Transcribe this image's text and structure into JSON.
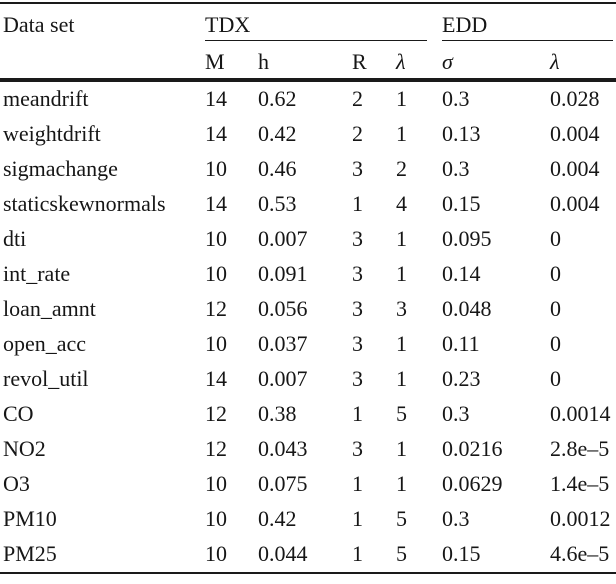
{
  "table": {
    "dataset_header": "Data set",
    "groups": [
      {
        "label": "TDX"
      },
      {
        "label": "EDD"
      }
    ],
    "subheaders": [
      "M",
      "h",
      "R",
      "λ",
      "σ",
      "λ"
    ],
    "rows": [
      {
        "name": "meandrift",
        "values": [
          "14",
          "0.62",
          "2",
          "1",
          "0.3",
          "0.028"
        ]
      },
      {
        "name": "weightdrift",
        "values": [
          "14",
          "0.42",
          "2",
          "1",
          "0.13",
          "0.004"
        ]
      },
      {
        "name": "sigmachange",
        "values": [
          "10",
          "0.46",
          "3",
          "2",
          "0.3",
          "0.004"
        ]
      },
      {
        "name": "staticskewnormals",
        "values": [
          "14",
          "0.53",
          "1",
          "4",
          "0.15",
          "0.004"
        ]
      },
      {
        "name": "dti",
        "values": [
          "10",
          "0.007",
          "3",
          "1",
          "0.095",
          "0"
        ]
      },
      {
        "name": "int_rate",
        "values": [
          "10",
          "0.091",
          "3",
          "1",
          "0.14",
          "0"
        ]
      },
      {
        "name": "loan_amnt",
        "values": [
          "12",
          "0.056",
          "3",
          "3",
          "0.048",
          "0"
        ]
      },
      {
        "name": "open_acc",
        "values": [
          "10",
          "0.037",
          "3",
          "1",
          "0.11",
          "0"
        ]
      },
      {
        "name": "revol_util",
        "values": [
          "14",
          "0.007",
          "3",
          "1",
          "0.23",
          "0"
        ]
      },
      {
        "name": "CO",
        "values": [
          "12",
          "0.38",
          "1",
          "5",
          "0.3",
          "0.0014"
        ]
      },
      {
        "name": "NO2",
        "values": [
          "12",
          "0.043",
          "3",
          "1",
          "0.0216",
          "2.8e–5"
        ]
      },
      {
        "name": "O3",
        "values": [
          "10",
          "0.075",
          "1",
          "1",
          "0.0629",
          "1.4e–5"
        ]
      },
      {
        "name": "PM10",
        "values": [
          "10",
          "0.42",
          "1",
          "5",
          "0.3",
          "0.0012"
        ]
      },
      {
        "name": "PM25",
        "values": [
          "10",
          "0.044",
          "1",
          "5",
          "0.15",
          "4.6e–5"
        ]
      }
    ]
  },
  "colors": {
    "text": "#161616",
    "rule": "#1a1a1a",
    "background": "#ffffff"
  }
}
